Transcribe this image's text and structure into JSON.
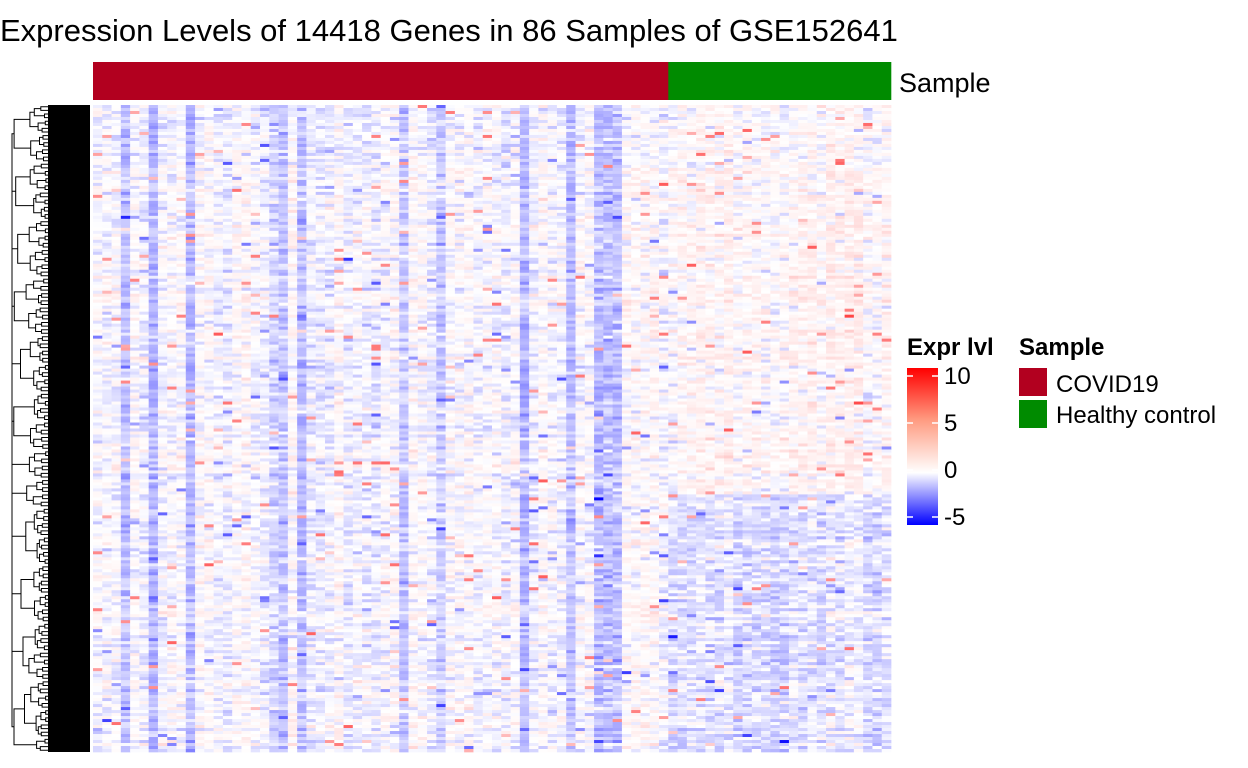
{
  "chart_data": {
    "type": "heatmap",
    "title": "Expression Levels of 14418 Genes in 86 Samples of GSE152641",
    "n_genes": 14418,
    "n_samples": 86,
    "row_dendrogram": true,
    "column_annotation": {
      "label": "Sample",
      "groups": [
        {
          "name": "COVID19",
          "count": 62,
          "color": "#B2001F"
        },
        {
          "name": "Healthy control",
          "count": 24,
          "color": "#008B00"
        }
      ]
    },
    "color_scale": {
      "title": "Expr lvl",
      "min": -5,
      "mid": 0,
      "max": 10,
      "colors": {
        "low": "#0000FF",
        "mid": "#FFFFFF",
        "high": "#FF0000"
      },
      "ticks": [
        "10",
        "5",
        "0",
        "-5"
      ]
    },
    "annotation_legend": {
      "title": "Sample",
      "items": [
        {
          "label": "COVID19",
          "color": "#B2001F"
        },
        {
          "label": "Healthy control",
          "color": "#008B00"
        }
      ]
    }
  }
}
